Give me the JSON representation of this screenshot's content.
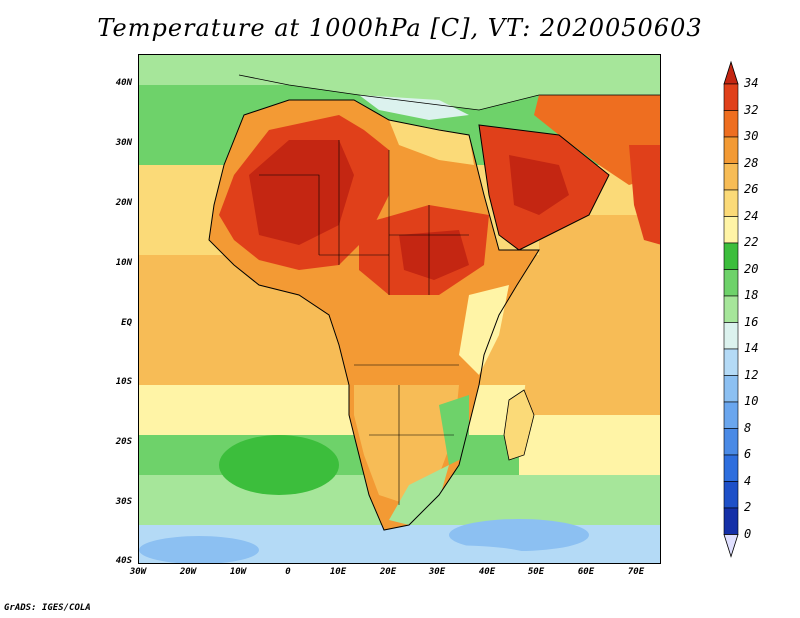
{
  "title": "Temperature at 1000hPa [C], VT: 2020050603",
  "credit": "GrADS: IGES/COLA",
  "map": {
    "lat_labels": [
      "40N",
      "30N",
      "20N",
      "10N",
      "EQ",
      "10S",
      "20S",
      "30S",
      "40S"
    ],
    "lon_labels": [
      "30W",
      "20W",
      "10W",
      "0",
      "10E",
      "20E",
      "30E",
      "40E",
      "50E",
      "60E",
      "70E"
    ],
    "lat_range": [
      -40,
      44
    ],
    "lon_range": [
      -30,
      75
    ]
  },
  "colorbar": {
    "levels": [
      "0",
      "2",
      "4",
      "6",
      "8",
      "10",
      "12",
      "14",
      "16",
      "18",
      "20",
      "22",
      "24",
      "26",
      "28",
      "30",
      "32",
      "34"
    ],
    "colors": [
      "#0f1e6e",
      "#1530a8",
      "#1e50c8",
      "#2e6ede",
      "#4a8ae6",
      "#6aa6ee",
      "#8cc0f2",
      "#b4daf6",
      "#dcf2ee",
      "#a6e69a",
      "#6ed26a",
      "#3cbe3c",
      "#fff4a6",
      "#fbda78",
      "#f7bc56",
      "#f39a34",
      "#ee6e20",
      "#e0401a",
      "#c42612"
    ]
  },
  "colors": {
    "ocean_south_deep": "#6aa6ee",
    "ocean_south": "#a6e69a",
    "ocean_mid": "#fbda78",
    "ocean_tropic": "#f7bc56",
    "land_hot": "#e0401a",
    "land_very_hot": "#c42612",
    "land_warm": "#f39a34",
    "land_mild": "#fff4a6",
    "land_green": "#6ed26a",
    "coastline": "#000000"
  }
}
